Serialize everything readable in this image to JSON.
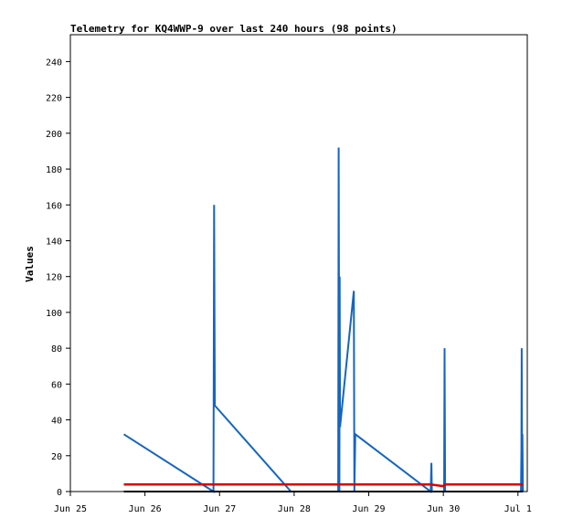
{
  "chart_data": {
    "type": "line",
    "title": "Telemetry for KQ4WWP-9 over last 240 hours (98 points)",
    "xlabel": "",
    "ylabel": "Values",
    "ylim": [
      0,
      255
    ],
    "yticks": [
      0,
      20,
      40,
      60,
      80,
      100,
      120,
      140,
      160,
      180,
      200,
      220,
      240
    ],
    "xlim": [
      "Jun 25 00:00",
      "Jul 1 03:00"
    ],
    "xticks": [
      {
        "at": "Jun 25 00:00",
        "label": "Jun 25"
      },
      {
        "at": "Jun 26 00:00",
        "label": "Jun 26"
      },
      {
        "at": "Jun 27 00:00",
        "label": "Jun 27"
      },
      {
        "at": "Jun 28 00:00",
        "label": "Jun 28"
      },
      {
        "at": "Jun 29 00:00",
        "label": "Jun 29"
      },
      {
        "at": "Jun 30 00:00",
        "label": "Jun 30"
      },
      {
        "at": "Jul 1 00:00",
        "label": "Jul 1"
      }
    ],
    "grid": false,
    "legend": "none",
    "series": [
      {
        "color": "#1565c0",
        "points": [
          {
            "x": "Jun 25 17:12",
            "y": 32
          },
          {
            "x": "Jun 26 22:02",
            "y": 0
          },
          {
            "x": "Jun 26 22:14",
            "y": 160
          },
          {
            "x": "Jun 26 22:29",
            "y": 48
          },
          {
            "x": "Jun 27 22:58",
            "y": 0
          },
          {
            "x": "Jun 28 14:10",
            "y": 0
          },
          {
            "x": "Jun 28 14:19",
            "y": 192
          },
          {
            "x": "Jun 28 14:34",
            "y": 0
          },
          {
            "x": "Jun 28 14:38",
            "y": 120
          },
          {
            "x": "Jun 28 14:46",
            "y": 36
          },
          {
            "x": "Jun 28 19:12",
            "y": 112
          },
          {
            "x": "Jun 28 19:17",
            "y": 56
          },
          {
            "x": "Jun 28 19:22",
            "y": 0
          },
          {
            "x": "Jun 28 19:41",
            "y": 32
          },
          {
            "x": "Jun 29 19:55",
            "y": 0
          },
          {
            "x": "Jun 29 20:10",
            "y": 16
          },
          {
            "x": "Jun 29 20:19",
            "y": 0
          },
          {
            "x": "Jun 30 00:14",
            "y": 0
          },
          {
            "x": "Jun 30 00:24",
            "y": 80
          },
          {
            "x": "Jun 30 00:34",
            "y": 0
          },
          {
            "x": "Jul 1 00:58",
            "y": 0
          },
          {
            "x": "Jul 1 01:07",
            "y": 24
          },
          {
            "x": "Jul 1 01:12",
            "y": 80
          },
          {
            "x": "Jul 1 01:22",
            "y": 0
          },
          {
            "x": "Jul 1 01:26",
            "y": 32
          },
          {
            "x": "Jul 1 01:36",
            "y": 0
          }
        ]
      },
      {
        "color": "#dd0000",
        "points": [
          {
            "x": "Jun 25 17:12",
            "y": 4
          },
          {
            "x": "Jun 29 19:55",
            "y": 4
          },
          {
            "x": "Jun 30 00:00",
            "y": 3
          },
          {
            "x": "Jun 30 00:24",
            "y": 4
          },
          {
            "x": "Jul 1 01:36",
            "y": 4
          }
        ]
      },
      {
        "color": "#000000",
        "points": [
          {
            "x": "Jun 25 17:12",
            "y": 0
          },
          {
            "x": "Jul 1 01:36",
            "y": 0
          }
        ]
      }
    ]
  }
}
